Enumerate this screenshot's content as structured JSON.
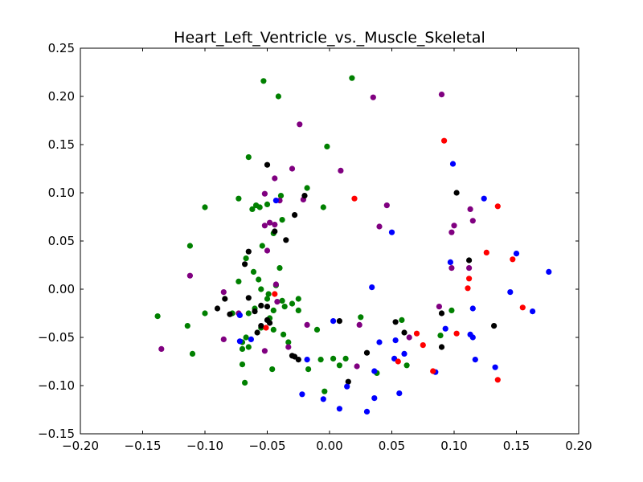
{
  "chart_data": {
    "type": "scatter",
    "title": "Heart_Left_Ventricle_vs._Muscle_Skeletal",
    "xlabel": "",
    "ylabel": "",
    "xlim": [
      -0.2,
      0.2
    ],
    "ylim": [
      -0.15,
      0.25
    ],
    "x_ticks": [
      "−0.20",
      "−0.15",
      "−0.10",
      "−0.05",
      "0.00",
      "0.05",
      "0.10",
      "0.15",
      "0.20"
    ],
    "x_tick_values": [
      -0.2,
      -0.15,
      -0.1,
      -0.05,
      0.0,
      0.05,
      0.1,
      0.15,
      0.2
    ],
    "y_ticks": [
      "0.25",
      "0.20",
      "0.15",
      "0.10",
      "0.05",
      "0.00",
      "−0.05",
      "−0.10",
      "−0.15"
    ],
    "y_tick_values": [
      0.25,
      0.2,
      0.15,
      0.1,
      0.05,
      0.0,
      -0.05,
      -0.1,
      -0.15
    ],
    "grid": false,
    "series": [
      {
        "color": "#008000",
        "points": [
          [
            -0.053,
            0.216
          ],
          [
            0.018,
            0.219
          ],
          [
            -0.041,
            0.2
          ],
          [
            -0.002,
            0.148
          ],
          [
            -0.065,
            0.137
          ],
          [
            -0.1,
            0.085
          ],
          [
            -0.073,
            0.094
          ],
          [
            -0.059,
            0.087
          ],
          [
            -0.056,
            0.085
          ],
          [
            -0.05,
            0.088
          ],
          [
            -0.062,
            0.083
          ],
          [
            -0.018,
            0.105
          ],
          [
            -0.005,
            0.085
          ],
          [
            -0.039,
            0.097
          ],
          [
            -0.038,
            0.072
          ],
          [
            -0.045,
            0.058
          ],
          [
            -0.112,
            0.045
          ],
          [
            -0.054,
            0.045
          ],
          [
            -0.067,
            0.032
          ],
          [
            -0.04,
            0.022
          ],
          [
            -0.061,
            0.018
          ],
          [
            -0.057,
            0.01
          ],
          [
            -0.073,
            0.008
          ],
          [
            -0.055,
            0.0
          ],
          [
            -0.049,
            -0.005
          ],
          [
            -0.043,
            0.004
          ],
          [
            -0.025,
            -0.01
          ],
          [
            -0.038,
            -0.012
          ],
          [
            -0.03,
            -0.015
          ],
          [
            -0.025,
            -0.022
          ],
          [
            -0.036,
            -0.018
          ],
          [
            -0.05,
            -0.01
          ],
          [
            -0.06,
            -0.02
          ],
          [
            -0.065,
            -0.025
          ],
          [
            -0.045,
            -0.022
          ],
          [
            -0.138,
            -0.028
          ],
          [
            -0.1,
            -0.025
          ],
          [
            -0.078,
            -0.025
          ],
          [
            -0.048,
            -0.03
          ],
          [
            -0.055,
            -0.04
          ],
          [
            -0.045,
            -0.042
          ],
          [
            -0.037,
            -0.047
          ],
          [
            -0.01,
            -0.042
          ],
          [
            -0.114,
            -0.038
          ],
          [
            -0.11,
            -0.067
          ],
          [
            -0.07,
            -0.055
          ],
          [
            -0.07,
            -0.062
          ],
          [
            -0.065,
            -0.06
          ],
          [
            -0.067,
            -0.05
          ],
          [
            -0.033,
            -0.055
          ],
          [
            -0.07,
            -0.078
          ],
          [
            -0.068,
            -0.097
          ],
          [
            -0.046,
            -0.083
          ],
          [
            -0.007,
            -0.073
          ],
          [
            0.003,
            -0.072
          ],
          [
            0.013,
            -0.072
          ],
          [
            -0.017,
            -0.083
          ],
          [
            -0.004,
            -0.106
          ],
          [
            0.008,
            -0.079
          ],
          [
            0.038,
            -0.087
          ],
          [
            0.058,
            -0.032
          ],
          [
            0.062,
            -0.079
          ],
          [
            0.098,
            -0.022
          ],
          [
            0.089,
            -0.048
          ],
          [
            0.025,
            -0.029
          ]
        ]
      },
      {
        "color": "#800080",
        "points": [
          [
            0.035,
            0.199
          ],
          [
            0.09,
            0.202
          ],
          [
            -0.024,
            0.171
          ],
          [
            -0.03,
            0.125
          ],
          [
            0.009,
            0.123
          ],
          [
            -0.044,
            0.115
          ],
          [
            -0.052,
            0.099
          ],
          [
            -0.04,
            0.092
          ],
          [
            -0.021,
            0.093
          ],
          [
            0.046,
            0.087
          ],
          [
            -0.048,
            0.069
          ],
          [
            -0.052,
            0.066
          ],
          [
            -0.044,
            0.067
          ],
          [
            0.04,
            0.065
          ],
          [
            0.1,
            0.066
          ],
          [
            0.115,
            0.071
          ],
          [
            0.113,
            0.083
          ],
          [
            0.098,
            0.059
          ],
          [
            -0.05,
            0.04
          ],
          [
            -0.112,
            0.014
          ],
          [
            -0.085,
            -0.003
          ],
          [
            -0.043,
            0.005
          ],
          [
            -0.042,
            -0.013
          ],
          [
            0.088,
            -0.018
          ],
          [
            -0.073,
            -0.025
          ],
          [
            -0.085,
            -0.052
          ],
          [
            -0.018,
            -0.037
          ],
          [
            0.024,
            -0.037
          ],
          [
            0.064,
            -0.05
          ],
          [
            -0.052,
            -0.064
          ],
          [
            -0.033,
            -0.06
          ],
          [
            0.022,
            -0.08
          ],
          [
            -0.135,
            -0.062
          ],
          [
            0.112,
            0.022
          ],
          [
            0.098,
            0.022
          ]
        ]
      },
      {
        "color": "#000000",
        "points": [
          [
            -0.05,
            0.129
          ],
          [
            0.102,
            0.1
          ],
          [
            -0.02,
            0.097
          ],
          [
            -0.028,
            0.077
          ],
          [
            -0.044,
            0.06
          ],
          [
            -0.035,
            0.051
          ],
          [
            -0.065,
            0.039
          ],
          [
            -0.068,
            0.026
          ],
          [
            0.112,
            0.03
          ],
          [
            -0.065,
            -0.009
          ],
          [
            -0.084,
            -0.01
          ],
          [
            -0.055,
            -0.017
          ],
          [
            -0.05,
            -0.018
          ],
          [
            -0.09,
            -0.02
          ],
          [
            -0.08,
            -0.026
          ],
          [
            -0.06,
            -0.023
          ],
          [
            0.09,
            -0.025
          ],
          [
            -0.05,
            -0.032
          ],
          [
            -0.048,
            -0.035
          ],
          [
            0.008,
            -0.033
          ],
          [
            0.053,
            -0.034
          ],
          [
            0.132,
            -0.038
          ],
          [
            -0.055,
            -0.038
          ],
          [
            -0.058,
            -0.045
          ],
          [
            0.06,
            -0.045
          ],
          [
            -0.028,
            -0.07
          ],
          [
            -0.03,
            -0.069
          ],
          [
            -0.025,
            -0.073
          ],
          [
            0.03,
            -0.066
          ],
          [
            0.09,
            -0.06
          ],
          [
            0.015,
            -0.096
          ]
        ]
      },
      {
        "color": "#0000ff",
        "points": [
          [
            0.099,
            0.13
          ],
          [
            -0.043,
            0.092
          ],
          [
            0.124,
            0.094
          ],
          [
            0.05,
            0.059
          ],
          [
            0.097,
            0.028
          ],
          [
            0.15,
            0.037
          ],
          [
            0.176,
            0.018
          ],
          [
            0.034,
            0.002
          ],
          [
            0.145,
            -0.003
          ],
          [
            0.115,
            -0.02
          ],
          [
            0.163,
            -0.023
          ],
          [
            -0.072,
            -0.027
          ],
          [
            0.003,
            -0.033
          ],
          [
            0.093,
            -0.041
          ],
          [
            0.113,
            -0.047
          ],
          [
            0.115,
            -0.05
          ],
          [
            0.04,
            -0.055
          ],
          [
            0.053,
            -0.053
          ],
          [
            -0.072,
            -0.054
          ],
          [
            -0.063,
            -0.052
          ],
          [
            0.06,
            -0.067
          ],
          [
            0.052,
            -0.072
          ],
          [
            0.117,
            -0.073
          ],
          [
            -0.018,
            -0.073
          ],
          [
            0.133,
            -0.081
          ],
          [
            0.036,
            -0.085
          ],
          [
            0.085,
            -0.086
          ],
          [
            0.014,
            -0.101
          ],
          [
            0.056,
            -0.108
          ],
          [
            -0.022,
            -0.109
          ],
          [
            0.036,
            -0.113
          ],
          [
            -0.005,
            -0.114
          ],
          [
            0.008,
            -0.124
          ],
          [
            0.03,
            -0.127
          ]
        ]
      },
      {
        "color": "#ff0000",
        "points": [
          [
            0.092,
            0.154
          ],
          [
            0.02,
            0.094
          ],
          [
            0.135,
            0.086
          ],
          [
            0.126,
            0.038
          ],
          [
            0.147,
            0.031
          ],
          [
            0.112,
            0.011
          ],
          [
            0.111,
            0.001
          ],
          [
            -0.044,
            -0.005
          ],
          [
            0.155,
            -0.019
          ],
          [
            0.07,
            -0.046
          ],
          [
            0.102,
            -0.046
          ],
          [
            -0.051,
            -0.04
          ],
          [
            0.075,
            -0.058
          ],
          [
            0.055,
            -0.075
          ],
          [
            0.083,
            -0.085
          ],
          [
            0.135,
            -0.094
          ]
        ]
      }
    ]
  }
}
